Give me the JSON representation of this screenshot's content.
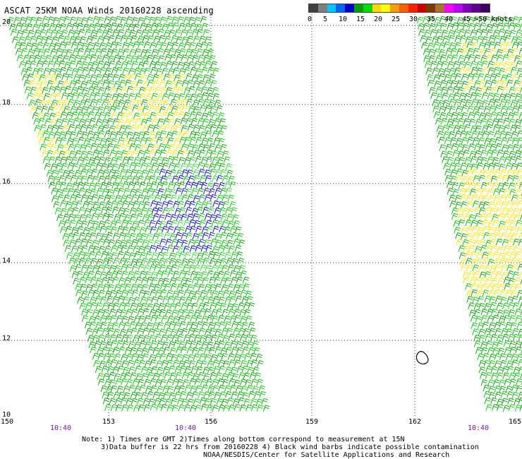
{
  "title": "ASCAT 25KM NOAA Winds 20160228 ascending",
  "legend": {
    "colors": [
      "#404040",
      "#7f7f7f",
      "#00c8ff",
      "#0064ff",
      "#0000c8",
      "#00a000",
      "#00e000",
      "#ffd800",
      "#ffff00",
      "#ff9c00",
      "#ff6000",
      "#ff2000",
      "#d00000",
      "#7a3b00",
      "#b07030",
      "#ff00ff",
      "#c000ff",
      "#8000c0",
      "#600090",
      "#400060"
    ],
    "labels": [
      "0",
      "5",
      "10",
      "15",
      "20",
      "25",
      "30",
      "35",
      "40",
      "45",
      ">50 knots"
    ]
  },
  "axes": {
    "lat_labels": [
      "20",
      "18",
      "16",
      "14",
      "12",
      "10"
    ],
    "lon_labels": [
      "150",
      "153",
      "156",
      "159",
      "162",
      "165"
    ],
    "times": [
      "10:40",
      "10:40",
      "10:40"
    ]
  },
  "notes": [
    "Note: 1) Times are GMT 2)Times along bottom correspond to measurement at 15N",
    "3)Data buffer is 22 hrs from 20160228 4) Black wind barbs indicate possible contamination",
    "NOAA/NESDIS/Center for Satellite Applications and Research"
  ]
}
